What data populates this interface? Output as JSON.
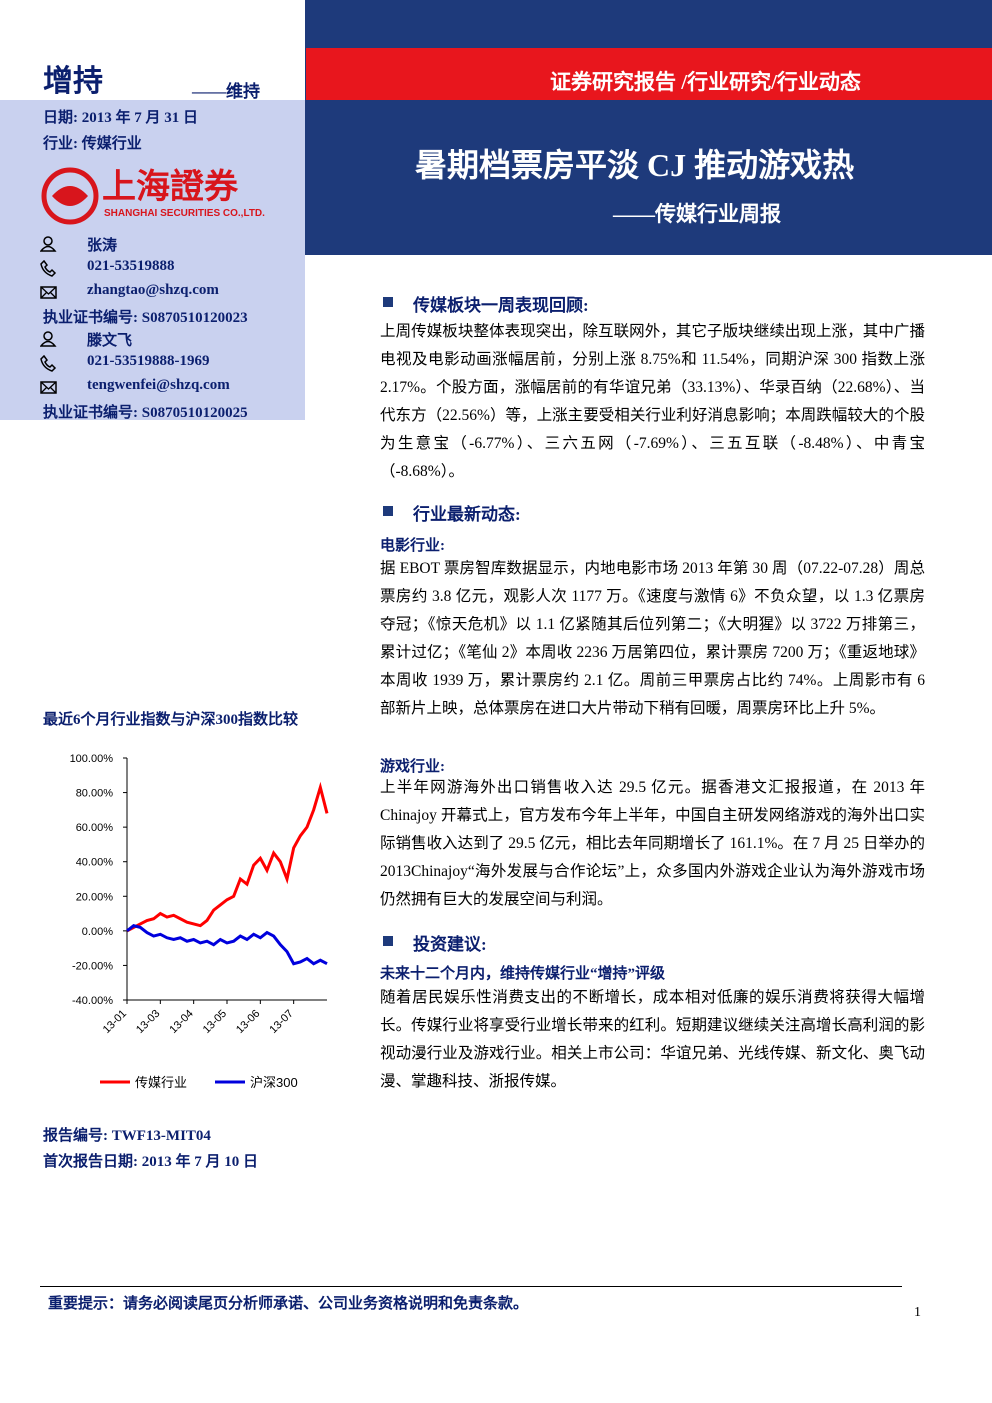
{
  "rating": {
    "rating": "增持",
    "change": "——维持"
  },
  "sidebar": {
    "date": "日期: 2013 年 7 月 31 日",
    "industry": "行业: 传媒行业",
    "logo_name": "上海證券",
    "logo_en": "SHANGHAI SECURITIES CO.,LTD.",
    "analysts": [
      {
        "name": "张涛",
        "phone": "021-53519888",
        "email": "zhangtao@shzq.com",
        "cert": "执业证书编号: S0870510120023"
      },
      {
        "name": "滕文飞",
        "phone": "021-53519888-1969",
        "email": "tengwenfei@shzq.com",
        "cert": "执业证书编号: S0870510120025"
      }
    ]
  },
  "header": {
    "category": "证券研究报告 /行业研究/行业动态",
    "title": "暑期档票房平淡 CJ 推动游戏热",
    "subtitle": "——传媒行业周报"
  },
  "sections": [
    {
      "heading": "传媒板块一周表现回顾:",
      "text": "上周传媒板块整体表现突出，除互联网外，其它子版块继续出现上涨，其中广播电视及电影动画涨幅居前，分别上涨 8.75%和 11.54%，同期沪深 300 指数上涨 2.17%。个股方面，涨幅居前的有华谊兄弟（33.13%）、华录百纳（22.68%）、当代东方（22.56%）等，上涨主要受相关行业利好消息影响；本周跌幅较大的个股为生意宝（-6.77%）、三六五网（-7.69%）、三五互联（-8.48%）、中青宝（-8.68%）。"
    },
    {
      "heading": "行业最新动态:",
      "items": [
        {
          "sub": "电影行业:",
          "text": "据 EBOT 票房智库数据显示，内地电影市场 2013 年第 30 周（07.22-07.28）周总票房约 3.8 亿元，观影人次 1177 万。《速度与激情 6》不负众望，以 1.3 亿票房夺冠；《惊天危机》以 1.1 亿紧随其后位列第二；《大明猩》以 3722 万排第三，累计过亿；《笔仙 2》本周收 2236 万居第四位，累计票房 7200 万；《重返地球》本周收 1939 万，累计票房约 2.1 亿。周前三甲票房占比约 74%。上周影市有 6 部新片上映，总体票房在进口大片带动下稍有回暖，周票房环比上升 5%。"
        },
        {
          "sub": "游戏行业:",
          "text": "上半年网游海外出口销售收入达 29.5 亿元。据香港文汇报报道，在 2013 年 Chinajoy 开幕式上，官方发布今年上半年，中国自主研发网络游戏的海外出口实际销售收入达到了 29.5 亿元，相比去年同期增长了 161.1%。在 7 月 25 日举办的 2013Chinajoy“海外发展与合作论坛”上，众多国内外游戏企业认为海外游戏市场仍然拥有巨大的发展空间与利润。"
        }
      ]
    },
    {
      "heading": "投资建议:",
      "sub": "未来十二个月内，维持传媒行业“增持”评级",
      "text": "随着居民娱乐性消费支出的不断增长，成本相对低廉的娱乐消费将获得大幅增长。传媒行业将享受行业增长带来的红利。短期建议继续关注高增长高利润的影视动漫行业及游戏行业。相关上市公司：华谊兄弟、光线传媒、新文化、奥飞动漫、掌趣科技、浙报传媒。"
    }
  ],
  "chart_data": {
    "type": "line",
    "title": "最近6个月行业指数与沪深300指数比较",
    "categories": [
      "13-01",
      null,
      null,
      null,
      null,
      "13-03",
      null,
      null,
      null,
      null,
      "13-04",
      null,
      null,
      null,
      null,
      "13-05",
      null,
      null,
      null,
      null,
      "13-06",
      null,
      null,
      null,
      null,
      "13-07",
      null,
      null,
      null,
      null,
      null
    ],
    "series": [
      {
        "name": "传媒行业",
        "color": "#ff0000",
        "values": [
          0,
          2,
          4,
          6,
          7,
          10,
          8,
          9,
          7,
          5,
          4,
          3,
          6,
          12,
          15,
          18,
          20,
          30,
          27,
          38,
          42,
          35,
          45,
          40,
          30,
          48,
          55,
          60,
          70,
          83,
          68
        ]
      },
      {
        "name": "沪深300",
        "color": "#0000dd",
        "values": [
          0,
          3,
          2,
          -1,
          -3,
          -2,
          -4,
          -5,
          -4,
          -6,
          -5,
          -7,
          -6,
          -8,
          -5,
          -7,
          -6,
          -3,
          -5,
          -2,
          -4,
          -1,
          -3,
          -8,
          -12,
          -19,
          -18,
          -16,
          -19,
          -17,
          -19
        ]
      }
    ],
    "ylim": [
      -40,
      100
    ],
    "yticks": [
      {
        "value": -40,
        "label": "-40.00%"
      },
      {
        "value": -20,
        "label": "-20.00%"
      },
      {
        "value": 0,
        "label": "0.00%"
      },
      {
        "value": 20,
        "label": "20.00%"
      },
      {
        "value": 40,
        "label": "40.00%"
      },
      {
        "value": 60,
        "label": "60.00%"
      },
      {
        "value": 80,
        "label": "80.00%"
      },
      {
        "value": 100,
        "label": "100.00%"
      }
    ],
    "legend": "bottom"
  },
  "report_info": {
    "number": "报告编号: TWF13-MIT04",
    "first_date": "首次报告日期: 2013 年 7 月 10 日"
  },
  "footer": {
    "notice": "重要提示：请务必阅读尾页分析师承诺、公司业务资格说明和免责条款。",
    "page": "1"
  }
}
